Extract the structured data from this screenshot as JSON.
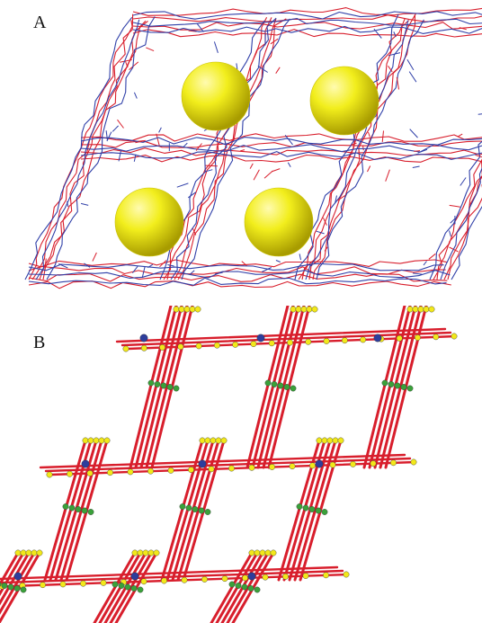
{
  "figure": {
    "panel_a": {
      "label": "A",
      "colors": {
        "network_1": "#d81e2c",
        "network_2": "#2f3fa8",
        "pore": "#f2ee1c"
      },
      "pore_count": 4
    },
    "panel_b": {
      "label": "B",
      "colors": {
        "rod": "#d81e2c",
        "node": "#2e3d9c",
        "terminal": "#f2e81a",
        "linker": "#3aa13a"
      }
    }
  }
}
